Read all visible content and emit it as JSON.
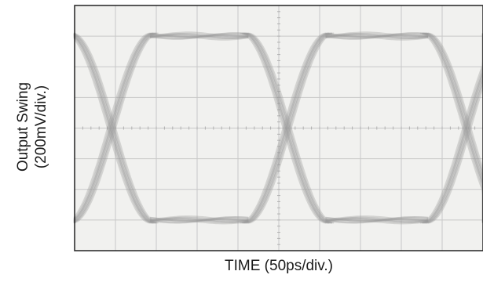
{
  "chart_data": {
    "type": "line",
    "title": "",
    "xlabel": "TIME (50ps/div.)",
    "ylabel_line1": "Output Swing",
    "ylabel_line2": "(200mV/div.)",
    "x_divisions": 10,
    "y_divisions": 8,
    "x_div_unit": "50 ps",
    "y_div_unit": "200 mV",
    "grid": true,
    "display": "eye-diagram",
    "crossings_div": [
      0.9,
      5.2,
      9.6
    ],
    "high_level_div": 7.0,
    "low_level_div": 1.0,
    "colors": {
      "trace": "#9a9a9a",
      "grid": "#c8c8c8",
      "axis_dots": "#b0b0b0",
      "frame": "#222222",
      "screen": "#f1f1ef"
    }
  }
}
